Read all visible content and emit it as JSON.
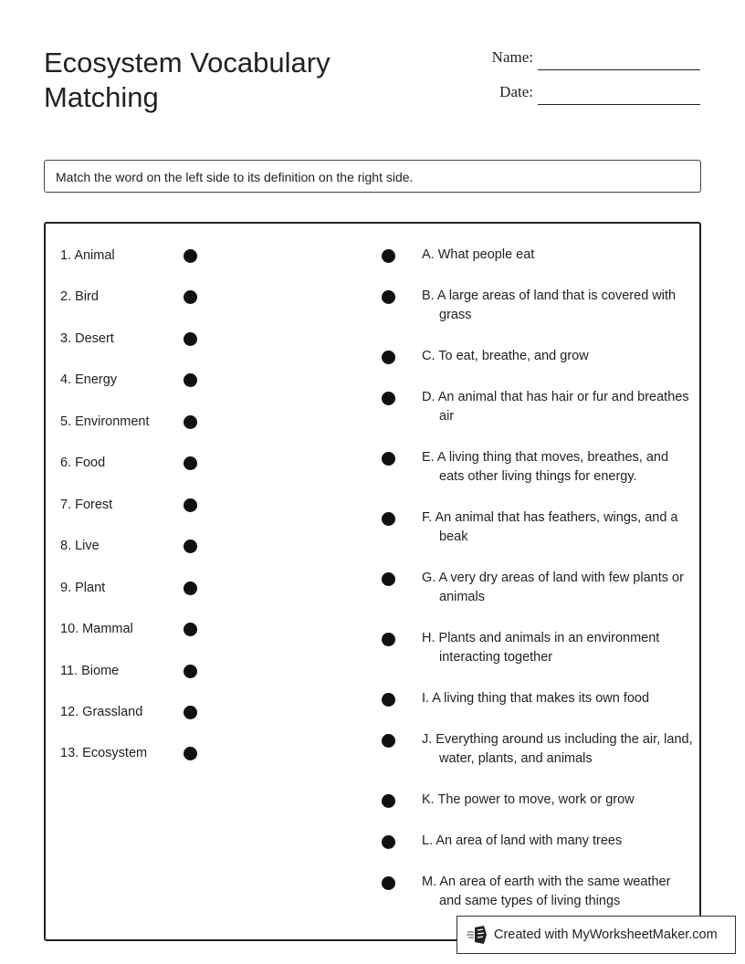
{
  "header": {
    "title": "Ecosystem Vocabulary Matching",
    "name_label": "Name:",
    "date_label": "Date:"
  },
  "instructions": "Match the word on the left side to its definition on the right side.",
  "words": [
    "1. Animal",
    "2. Bird",
    "3. Desert",
    "4. Energy",
    "5. Environment",
    "6. Food",
    "7. Forest",
    "8. Live",
    "9. Plant",
    "10. Mammal",
    "11. Biome",
    "12. Grassland",
    "13. Ecosystem"
  ],
  "definitions": [
    {
      "text": "A. What people eat",
      "lines": 1
    },
    {
      "text": "B. A large areas of land that is covered with grass",
      "lines": 2
    },
    {
      "text": "C. To eat, breathe, and grow",
      "lines": 1
    },
    {
      "text": "D. An animal that has hair or fur and breathes air",
      "lines": 2
    },
    {
      "text": "E. A living thing that moves, breathes, and eats other living things for energy.",
      "lines": 2
    },
    {
      "text": "F. An animal that has feathers, wings, and a beak",
      "lines": 2
    },
    {
      "text": "G. A very dry areas of land with few plants or animals",
      "lines": 2
    },
    {
      "text": "H. Plants and animals in an environment interacting together",
      "lines": 2
    },
    {
      "text": "I. A living thing that makes its own food",
      "lines": 1
    },
    {
      "text": "J. Everything around us including the air, land, water, plants, and animals",
      "lines": 2
    },
    {
      "text": "K. The power to move, work or grow",
      "lines": 1
    },
    {
      "text": "L. An area of land with many trees",
      "lines": 1
    },
    {
      "text": "M. An area of earth with the same weather and same types of living things",
      "lines": 3
    }
  ],
  "footer": {
    "badge_text": "Created with MyWorksheetMaker.com",
    "badge_icon": "worksheet-logo-icon"
  }
}
